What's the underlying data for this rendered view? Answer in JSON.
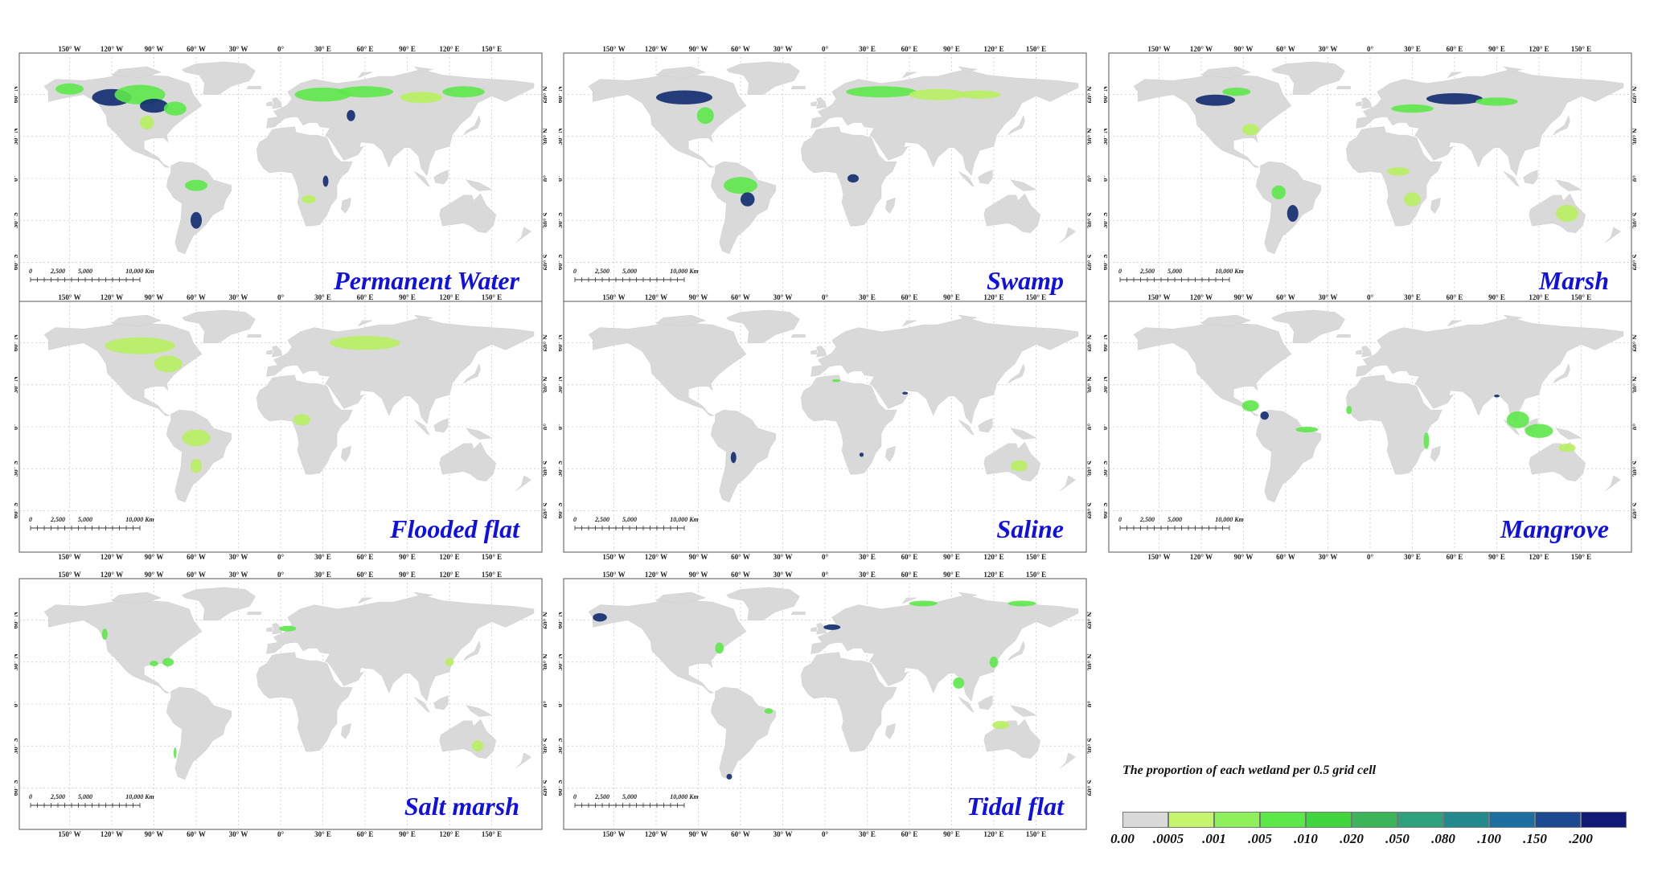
{
  "panels": [
    {
      "title": "Permanent Water"
    },
    {
      "title": "Swamp"
    },
    {
      "title": "Marsh"
    },
    {
      "title": "Flooded flat"
    },
    {
      "title": "Saline"
    },
    {
      "title": "Mangrove"
    },
    {
      "title": "Salt marsh"
    },
    {
      "title": "Tidal flat"
    }
  ],
  "lon_ticks": [
    "150° W",
    "120° W",
    "90° W",
    "60° W",
    "30° W",
    "0°",
    "30° E",
    "60° E",
    "90° E",
    "120° E",
    "150° E"
  ],
  "lat_ticks": [
    "60° N",
    "30° N",
    "0°",
    "30° S",
    "60° S"
  ],
  "scale_bar": {
    "labels": [
      "0",
      "2,500",
      "5,000",
      "10,000 Km"
    ]
  },
  "legend": {
    "title": "The proportion of each wetland per 0.5  grid cell",
    "labels": [
      "0.00",
      ".0005",
      ".001",
      ".005",
      ".010",
      ".020",
      ".050",
      ".080",
      ".100",
      ".150",
      ".200"
    ],
    "colors": [
      "#d9d9d9",
      "#c4f56a",
      "#8ef05a",
      "#5de84a",
      "#3fd63e",
      "#3cb55a",
      "#2fa07c",
      "#23898f",
      "#1d6ea0",
      "#1b4a93",
      "#121a78"
    ]
  },
  "colors": {
    "land": "#d9d9d9",
    "title_blue": "#1010e0",
    "wet_light": "#b8f060",
    "wet_mid": "#5de84a",
    "wet_dark": "#0f2a6e"
  }
}
